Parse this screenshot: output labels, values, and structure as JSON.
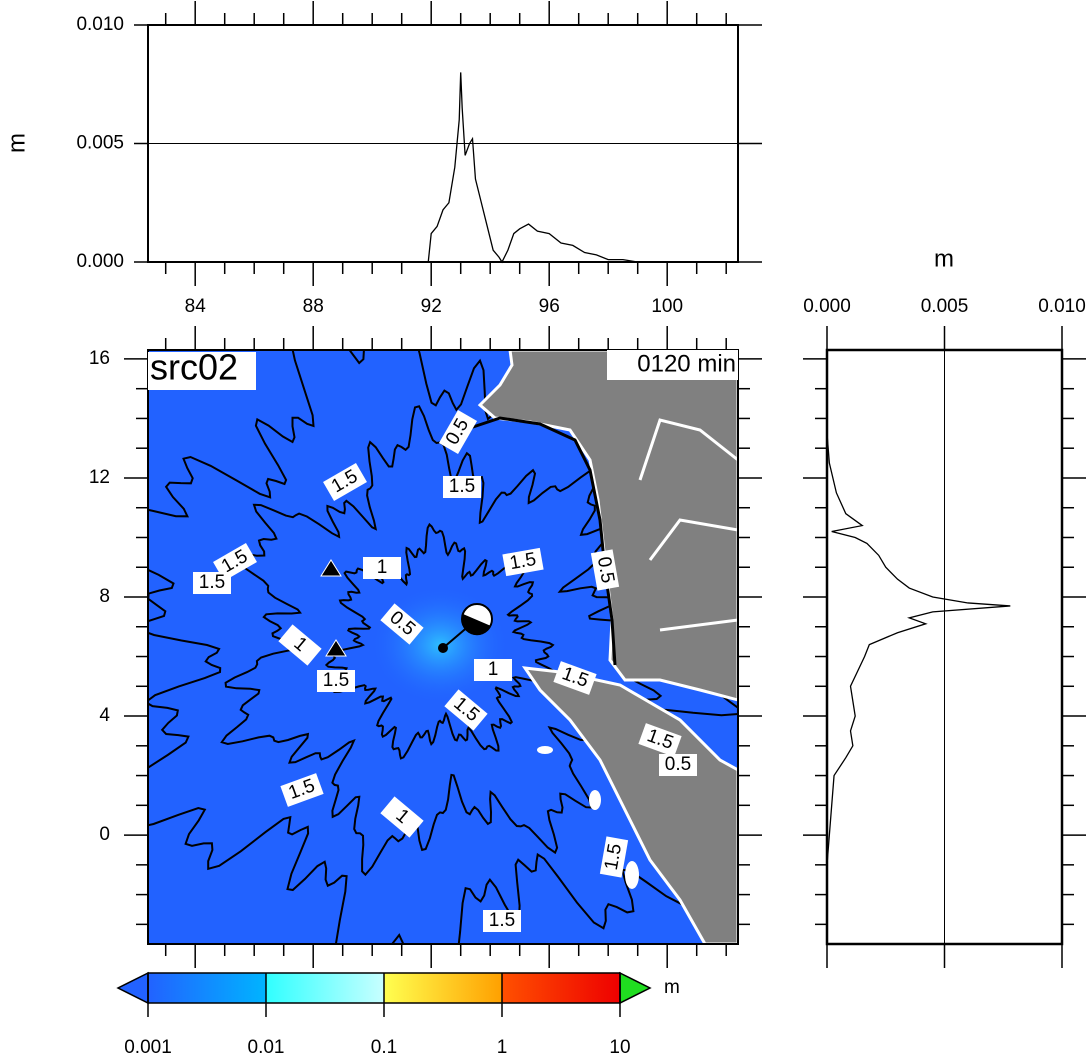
{
  "chart_data": [
    {
      "type": "line",
      "ylabel": "m",
      "color": "#000000",
      "grid": true,
      "x": [
        91.9,
        92.0,
        92.2,
        92.4,
        92.6,
        92.8,
        92.95,
        93.0,
        93.05,
        93.15,
        93.3,
        93.4,
        93.5,
        93.7,
        93.9,
        94.1,
        94.3,
        94.4,
        94.6,
        94.8,
        95.0,
        95.3,
        95.6,
        96.0,
        96.4,
        96.8,
        97.2,
        97.6,
        98.0,
        98.5,
        99.0
      ],
      "values": [
        0,
        0.0012,
        0.0015,
        0.0022,
        0.0025,
        0.004,
        0.006,
        0.008,
        0.0065,
        0.0045,
        0.005,
        0.0052,
        0.0035,
        0.0025,
        0.0015,
        0.0005,
        0.0002,
        0,
        0.0005,
        0.0012,
        0.0014,
        0.0016,
        0.0013,
        0.0012,
        0.0008,
        0.0007,
        0.0004,
        0.0003,
        0.0001,
        0.0001,
        0
      ],
      "xlim": [
        82.4,
        102.4
      ],
      "xticks": [
        84,
        88,
        92,
        96,
        100
      ],
      "xminorticks": [
        83,
        85,
        86,
        87,
        89,
        90,
        91,
        93,
        94,
        95,
        97,
        98,
        99,
        101,
        102
      ],
      "ylim": [
        0,
        0.01
      ],
      "yticks": [
        {
          "value": 0,
          "label": "0.000"
        },
        {
          "value": 0.005,
          "label": "0.005"
        },
        {
          "value": 0.01,
          "label": "0.010"
        }
      ]
    },
    {
      "type": "map",
      "title": "src02",
      "annotation": "0120 min",
      "xlim": [
        82.4,
        102.4
      ],
      "xminorticks": [
        83,
        84,
        85,
        86,
        87,
        88,
        89,
        90,
        91,
        92,
        93,
        94,
        95,
        96,
        97,
        98,
        99,
        100,
        101,
        102
      ],
      "ylim": [
        -3.66,
        16.3
      ],
      "yticks": [
        0,
        4,
        8,
        12,
        16
      ],
      "yminorticks": [
        -3,
        -2,
        -1,
        1,
        2,
        3,
        5,
        6,
        7,
        9,
        10,
        11,
        13,
        14,
        15
      ],
      "sea_color": "#2262ff",
      "land_color": "#808080",
      "contour_labels": [
        1.5,
        1.5,
        1.5,
        0.5,
        1.5,
        1.5,
        1,
        0.5,
        1,
        1.5,
        1,
        1.5,
        1.5,
        0.5,
        1.5,
        0.5,
        1.5,
        1,
        1.5,
        1.5
      ],
      "colorbar": {
        "label": "m",
        "log": true,
        "ticks": [
          0.001,
          0.01,
          0.1,
          1,
          10
        ],
        "colors": [
          "#2262ff",
          "#00b4ff",
          "#30ffff",
          "#c8ffff",
          "#ffff50",
          "#ffa000",
          "#ff5000",
          "#ee0000"
        ],
        "under_color": "#2262ff",
        "over_color": "#20dd20"
      }
    },
    {
      "type": "line",
      "orientation": "vertical",
      "xlabel": "m",
      "color": "#000000",
      "grid": true,
      "y": [
        -3.6,
        -1,
        0,
        1,
        2,
        2.6,
        3,
        3.5,
        4,
        4.5,
        5,
        5.5,
        6,
        6.4,
        6.8,
        7.1,
        7.3,
        7.5,
        7.7,
        7.8,
        8.0,
        8.3,
        8.6,
        9.0,
        9.4,
        9.8,
        10.0,
        10.2,
        10.4,
        10.8,
        11.5,
        12.5,
        13.5
      ],
      "values": [
        0,
        0,
        0.0001,
        0.0002,
        0.0003,
        0.0008,
        0.0011,
        0.001,
        0.0012,
        0.0011,
        0.001,
        0.0013,
        0.0016,
        0.0018,
        0.003,
        0.0042,
        0.0035,
        0.0045,
        0.0078,
        0.006,
        0.0045,
        0.0035,
        0.003,
        0.0025,
        0.0022,
        0.0017,
        0.0012,
        0.0002,
        0.0015,
        0.0008,
        0.0004,
        0.0001,
        0
      ],
      "xlim": [
        0,
        0.01
      ],
      "xticks": [
        {
          "value": 0,
          "label": "0.000"
        },
        {
          "value": 0.005,
          "label": "0.005"
        },
        {
          "value": 0.01,
          "label": "0.010"
        }
      ],
      "ylim": [
        -3.66,
        16.3
      ],
      "yticks": [
        0,
        4,
        8,
        12,
        16
      ],
      "yminorticks": [
        -3,
        -2,
        -1,
        1,
        2,
        3,
        5,
        6,
        7,
        9,
        10,
        11,
        13,
        14,
        15
      ]
    }
  ]
}
